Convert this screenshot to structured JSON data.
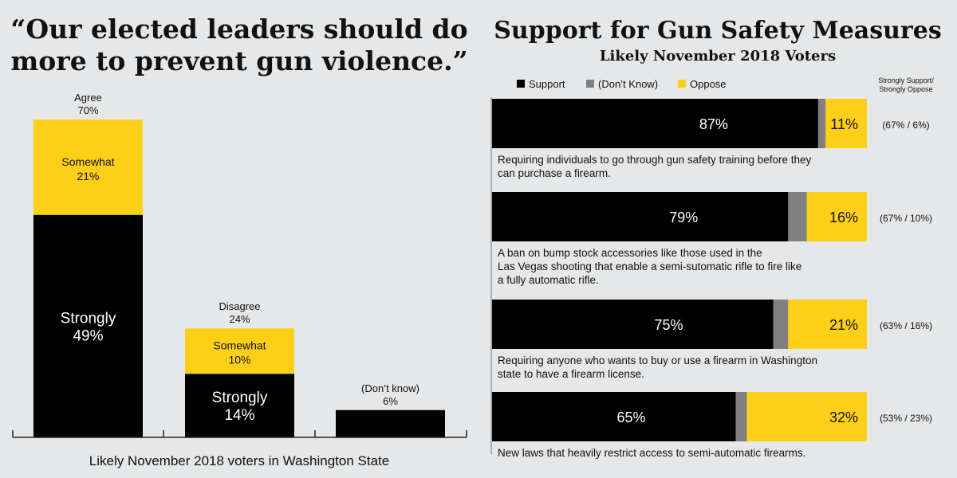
{
  "chart_data": [
    {
      "type": "bar",
      "stacked": true,
      "title": "“Our elected leaders should do more to prevent gun violence.”",
      "xlabel": "Likely November 2018 voters in Washington State",
      "bars": [
        {
          "label": "Agree",
          "total_label": "70%",
          "total": 70,
          "segments": [
            {
              "name": "Strongly",
              "value": 49,
              "label": "49%"
            },
            {
              "name": "Somewhat",
              "value": 21,
              "label": "21%"
            }
          ]
        },
        {
          "label": "Disagree",
          "total_label": "24%",
          "total": 24,
          "segments": [
            {
              "name": "Strongly",
              "value": 14,
              "label": "14%"
            },
            {
              "name": "Somewhat",
              "value": 10,
              "label": "10%"
            }
          ]
        },
        {
          "label": "(Don’t know)",
          "total_label": "6%",
          "total": 6,
          "segments": [
            {
              "name": "",
              "value": 6,
              "label": ""
            }
          ]
        }
      ],
      "colors": {
        "strongly": "#000000",
        "somewhat": "#fdd017"
      }
    },
    {
      "type": "bar",
      "orientation": "horizontal",
      "stacked": true,
      "title": "Support for Gun Safety Measures",
      "subtitle": "Likely November 2018 Voters",
      "legend": [
        {
          "name": "Support",
          "color": "#000000"
        },
        {
          "name": "(Don’t Know)",
          "color": "#808080"
        },
        {
          "name": "Oppose",
          "color": "#fdd017"
        }
      ],
      "legend_position": "top-left",
      "strong_header": [
        "Strongly Support/",
        "Strongly Oppose"
      ],
      "rows": [
        {
          "label_lines": [
            "Requiring individuals to go through gun safety training before they",
            "can purchase a firearm."
          ],
          "support": 87,
          "dont_know": 2,
          "oppose": 11,
          "support_label": "87%",
          "oppose_label": "11%",
          "strong": "(67% / 6%)"
        },
        {
          "label_lines": [
            "A ban on bump stock accessories like those used in the",
            "Las Vegas shooting that enable a semi-sutomatic rifle to fire like",
            "a fully automatic rifle."
          ],
          "support": 79,
          "dont_know": 5,
          "oppose": 16,
          "support_label": "79%",
          "oppose_label": "16%",
          "strong": "(67% / 10%)"
        },
        {
          "label_lines": [
            "Requiring anyone who wants to buy or use a firearm in Washington",
            "state to have a firearm license."
          ],
          "support": 75,
          "dont_know": 4,
          "oppose": 21,
          "support_label": "75%",
          "oppose_label": "21%",
          "strong": "(63% / 16%)"
        },
        {
          "label_lines": [
            "New laws that heavily restrict access to semi-automatic firearms."
          ],
          "support": 65,
          "dont_know": 3,
          "oppose": 32,
          "support_label": "65%",
          "oppose_label": "32%",
          "strong": "(53% / 23%)"
        }
      ]
    }
  ]
}
